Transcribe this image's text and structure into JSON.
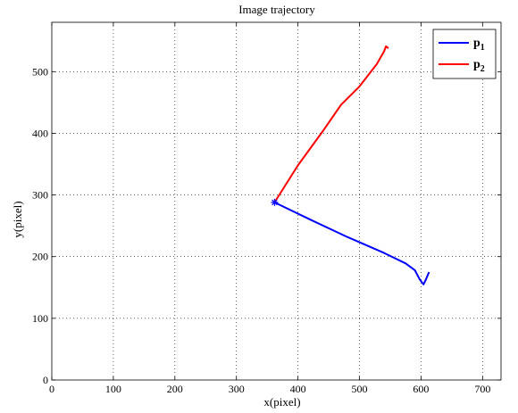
{
  "chart_data": {
    "type": "line",
    "title": "Image trajectory",
    "xlabel": "x(pixel)",
    "ylabel": "y(pixel)",
    "xlim": [
      0,
      730
    ],
    "ylim": [
      0,
      580
    ],
    "xticks": [
      0,
      100,
      200,
      300,
      400,
      500,
      600,
      700
    ],
    "yticks": [
      0,
      100,
      200,
      300,
      400,
      500
    ],
    "grid": true,
    "legend_position": "top-right",
    "start_marker": {
      "x": 362,
      "y": 288,
      "symbol": "*"
    },
    "series": [
      {
        "name": "p",
        "subscript": "1",
        "color": "#0000ff",
        "points": [
          [
            362,
            288
          ],
          [
            420,
            260
          ],
          [
            480,
            232
          ],
          [
            540,
            206
          ],
          [
            575,
            189
          ],
          [
            590,
            178
          ],
          [
            598,
            163
          ],
          [
            604,
            155
          ],
          [
            608,
            163
          ],
          [
            613,
            175
          ]
        ]
      },
      {
        "name": "p",
        "subscript": "2",
        "color": "#ff0000",
        "points": [
          [
            362,
            288
          ],
          [
            400,
            348
          ],
          [
            440,
            403
          ],
          [
            470,
            446
          ],
          [
            500,
            476
          ],
          [
            528,
            512
          ],
          [
            540,
            533
          ],
          [
            543,
            541
          ],
          [
            547,
            538
          ]
        ]
      }
    ]
  }
}
